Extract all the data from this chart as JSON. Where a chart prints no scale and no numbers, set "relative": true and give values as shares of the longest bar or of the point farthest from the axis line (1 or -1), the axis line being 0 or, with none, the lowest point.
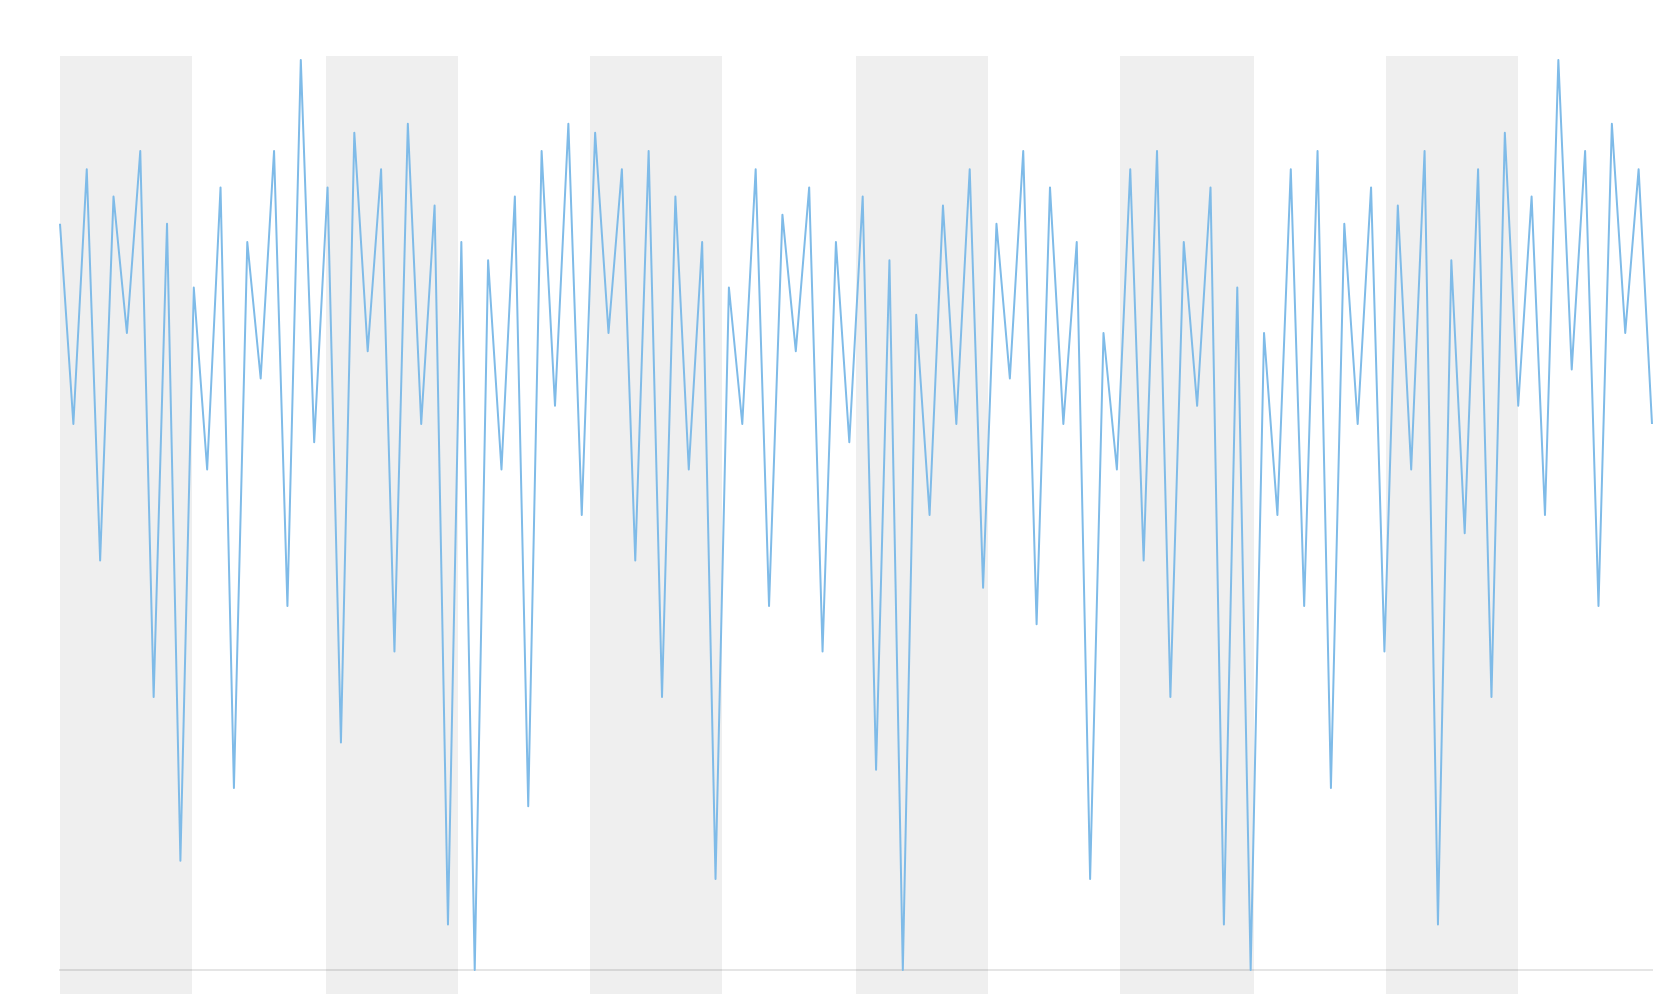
{
  "chart_data": {
    "type": "line",
    "relative": true,
    "grid": false,
    "legend": false,
    "marker": "none",
    "line_style": "solid",
    "categories": [
      null,
      null,
      null,
      null,
      null,
      null,
      null,
      null,
      null,
      null,
      null,
      null,
      null,
      null,
      null,
      null,
      null,
      null,
      null,
      null,
      null,
      null,
      null,
      null,
      null,
      null,
      null,
      null,
      null,
      null,
      null,
      null,
      null,
      null,
      null,
      null,
      null,
      null,
      null,
      null,
      null,
      null,
      null,
      null,
      null,
      null,
      null,
      null,
      null,
      null,
      null,
      null,
      null,
      null,
      null,
      null,
      null,
      null,
      null,
      null,
      null,
      null,
      null,
      null,
      null,
      null,
      null,
      null,
      null,
      null,
      null,
      null,
      null,
      null,
      null,
      null,
      null,
      null,
      null,
      null,
      null,
      null,
      null,
      null,
      null,
      null,
      null,
      null,
      null,
      null,
      null,
      null,
      null,
      null,
      null,
      null,
      null,
      null,
      null,
      null,
      null,
      null,
      null,
      null,
      null,
      null,
      null,
      null,
      null,
      null,
      null,
      null,
      null,
      null,
      null,
      null,
      null,
      null,
      null,
      null
    ],
    "series": [
      {
        "color": "#7fbbe8",
        "values": [
          0.82,
          0.6,
          0.88,
          0.45,
          0.85,
          0.7,
          0.9,
          0.3,
          0.82,
          0.12,
          0.75,
          0.55,
          0.86,
          0.2,
          0.8,
          0.65,
          0.9,
          0.4,
          1.0,
          0.58,
          0.86,
          0.25,
          0.92,
          0.68,
          0.88,
          0.35,
          0.93,
          0.6,
          0.84,
          0.05,
          0.8,
          0.0,
          0.78,
          0.55,
          0.85,
          0.18,
          0.9,
          0.62,
          0.93,
          0.5,
          0.92,
          0.7,
          0.88,
          0.45,
          0.9,
          0.3,
          0.85,
          0.55,
          0.8,
          0.1,
          0.75,
          0.6,
          0.88,
          0.4,
          0.83,
          0.68,
          0.86,
          0.35,
          0.8,
          0.58,
          0.85,
          0.22,
          0.78,
          0.0,
          0.72,
          0.5,
          0.84,
          0.6,
          0.88,
          0.42,
          0.82,
          0.65,
          0.9,
          0.38,
          0.86,
          0.6,
          0.8,
          0.1,
          0.7,
          0.55,
          0.88,
          0.45,
          0.9,
          0.3,
          0.8,
          0.62,
          0.86,
          0.05,
          0.75,
          0.0,
          0.7,
          0.5,
          0.88,
          0.4,
          0.9,
          0.2,
          0.82,
          0.6,
          0.86,
          0.35,
          0.84,
          0.55,
          0.9,
          0.05,
          0.78,
          0.48,
          0.88,
          0.3,
          0.92,
          0.62,
          0.85,
          0.5,
          1.0,
          0.66,
          0.9,
          0.4,
          0.93,
          0.7,
          0.88,
          0.6
        ]
      }
    ]
  }
}
